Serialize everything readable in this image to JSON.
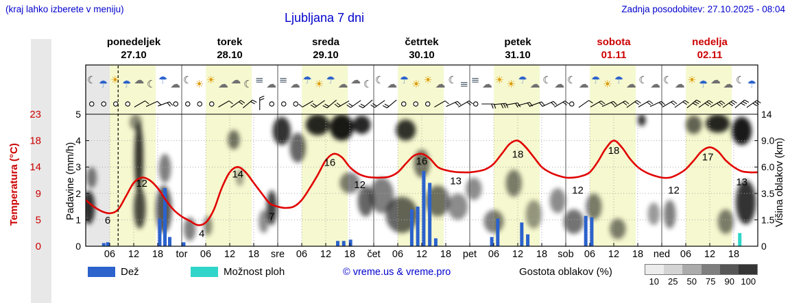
{
  "header": {
    "note": "(kraj lahko izberete v meniju)",
    "title": "Ljubljana 7 dni",
    "updated": "Zadnja posodobitev: 27.10.2025 - 08:04"
  },
  "colors": {
    "accent_blue": "#0000cc",
    "red": "#cc0000",
    "band_yellow": "#f6f8cf",
    "band_past": "#e7e7e7",
    "grid": "#aaaaaa",
    "frame": "#000000",
    "icon_colors": {
      "☀": "#dd9900",
      "☁": "#707070",
      "☾": "#404040",
      "☂": "#2b62cc",
      "≡": "#506070"
    }
  },
  "legend": {
    "rain": "Dež",
    "showers": "Možnost ploh",
    "copyright": "© vreme.us & vreme.pro",
    "cloud": "Gostota oblakov (%)",
    "cloud_scale": {
      "labels": [
        "10",
        "25",
        "50",
        "75",
        "90",
        "100"
      ],
      "colors": [
        "#ececec",
        "#d4d4d4",
        "#ababab",
        "#7e7e7e",
        "#565656",
        "#353535"
      ]
    }
  },
  "chart_data": {
    "type": "line",
    "title": "Ljubljana 7 dni",
    "hours_total": 168,
    "now_hour": 8.1,
    "daylight_hours": [
      6,
      17.5
    ],
    "past_hours": [
      0,
      6
    ],
    "days": [
      {
        "name": "ponedeljek",
        "date": "27.10",
        "abbr": "",
        "weekend": false
      },
      {
        "name": "torek",
        "date": "28.10",
        "abbr": "tor",
        "weekend": false
      },
      {
        "name": "sreda",
        "date": "29.10",
        "abbr": "sre",
        "weekend": false
      },
      {
        "name": "četrtek",
        "date": "30.10",
        "abbr": "čet",
        "weekend": false
      },
      {
        "name": "petek",
        "date": "31.10",
        "abbr": "pet",
        "weekend": false
      },
      {
        "name": "sobota",
        "date": "01.11",
        "abbr": "sob",
        "weekend": true
      },
      {
        "name": "nedelja",
        "date": "02.11",
        "abbr": "ned",
        "weekend": true
      }
    ],
    "x_hour_labels": [
      "06",
      "12",
      "18"
    ],
    "axes": {
      "temp": {
        "label": "Temperatura (°C)",
        "ticks": [
          "23",
          "18",
          "14",
          "9",
          "5",
          "0"
        ],
        "map_value": [
          0,
          5,
          9,
          14,
          18,
          23
        ],
        "map_unit": [
          0,
          1,
          2,
          3,
          4,
          5
        ]
      },
      "precip": {
        "label": "Padavine (mm/h)",
        "ticks": [
          "5",
          "4",
          "3",
          "2",
          "1",
          "0"
        ]
      },
      "cloud": {
        "label": "Višina oblakov (km)",
        "ticks": [
          "14",
          "9.0",
          "6.0",
          "3.5",
          "1.5",
          "0"
        ],
        "map_value": [
          0,
          1.5,
          3.5,
          6,
          9,
          14
        ],
        "map_unit": [
          0,
          1,
          2,
          3,
          4,
          5
        ]
      }
    },
    "temperature": {
      "name": "Temperatura (°C)",
      "color": "#e10000",
      "points": [
        [
          0,
          8
        ],
        [
          2,
          7
        ],
        [
          4,
          6.3
        ],
        [
          6,
          6
        ],
        [
          8,
          6.5
        ],
        [
          10,
          8.5
        ],
        [
          12,
          11
        ],
        [
          14,
          12
        ],
        [
          16,
          11.5
        ],
        [
          18,
          10
        ],
        [
          20,
          8
        ],
        [
          22,
          6.5
        ],
        [
          24,
          5.5
        ],
        [
          26,
          4.8
        ],
        [
          28,
          4
        ],
        [
          30,
          4.5
        ],
        [
          32,
          6.5
        ],
        [
          34,
          10
        ],
        [
          36,
          13
        ],
        [
          38,
          14
        ],
        [
          40,
          13
        ],
        [
          42,
          11
        ],
        [
          44,
          9
        ],
        [
          46,
          7.5
        ],
        [
          48,
          7
        ],
        [
          50,
          6.8
        ],
        [
          52,
          7
        ],
        [
          54,
          8
        ],
        [
          56,
          10
        ],
        [
          58,
          12.5
        ],
        [
          60,
          15
        ],
        [
          62,
          16
        ],
        [
          64,
          15.5
        ],
        [
          66,
          14
        ],
        [
          68,
          12.8
        ],
        [
          70,
          12.2
        ],
        [
          72,
          12
        ],
        [
          74,
          12
        ],
        [
          76,
          12.2
        ],
        [
          78,
          13
        ],
        [
          80,
          14.5
        ],
        [
          82,
          15.7
        ],
        [
          84,
          16
        ],
        [
          86,
          15.3
        ],
        [
          88,
          14
        ],
        [
          90,
          13.4
        ],
        [
          92,
          13.1
        ],
        [
          94,
          13
        ],
        [
          96,
          13
        ],
        [
          98,
          13.2
        ],
        [
          100,
          13.6
        ],
        [
          102,
          14.5
        ],
        [
          104,
          16
        ],
        [
          106,
          17.5
        ],
        [
          108,
          18
        ],
        [
          110,
          17
        ],
        [
          112,
          15.5
        ],
        [
          114,
          14
        ],
        [
          116,
          13
        ],
        [
          118,
          12.4
        ],
        [
          120,
          12
        ],
        [
          122,
          12
        ],
        [
          124,
          12.3
        ],
        [
          126,
          13
        ],
        [
          128,
          14.8
        ],
        [
          130,
          16.8
        ],
        [
          132,
          18
        ],
        [
          134,
          17
        ],
        [
          136,
          15.3
        ],
        [
          138,
          14
        ],
        [
          140,
          13
        ],
        [
          142,
          12.4
        ],
        [
          144,
          12
        ],
        [
          146,
          12
        ],
        [
          148,
          12.6
        ],
        [
          150,
          13.6
        ],
        [
          152,
          15
        ],
        [
          154,
          16.4
        ],
        [
          156,
          17
        ],
        [
          158,
          16.4
        ],
        [
          160,
          15
        ],
        [
          162,
          14
        ],
        [
          164,
          13.2
        ],
        [
          166,
          13
        ],
        [
          168,
          13
        ]
      ]
    },
    "temp_labels": [
      {
        "text": "6",
        "hour": 5.5,
        "unit": 0.85
      },
      {
        "text": "12",
        "hour": 14,
        "unit": 2.25
      },
      {
        "text": "4",
        "hour": 29,
        "unit": 0.35
      },
      {
        "text": "14",
        "hour": 38,
        "unit": 2.6
      },
      {
        "text": "7",
        "hour": 46.5,
        "unit": 1.0
      },
      {
        "text": "16",
        "hour": 61,
        "unit": 3.05
      },
      {
        "text": "12",
        "hour": 68.5,
        "unit": 2.2
      },
      {
        "text": "16",
        "hour": 84,
        "unit": 3.1
      },
      {
        "text": "13",
        "hour": 92.5,
        "unit": 2.35
      },
      {
        "text": "18",
        "hour": 108,
        "unit": 3.35
      },
      {
        "text": "12",
        "hour": 123,
        "unit": 2.0
      },
      {
        "text": "18",
        "hour": 132,
        "unit": 3.5
      },
      {
        "text": "12",
        "hour": 147,
        "unit": 2.0
      },
      {
        "text": "17",
        "hour": 155.5,
        "unit": 3.25
      },
      {
        "text": "13",
        "hour": 164,
        "unit": 2.3
      }
    ],
    "rain": {
      "name": "Dež (mm/h)",
      "color": "#2b62cc",
      "bars": [
        [
          4.5,
          0.12
        ],
        [
          5.5,
          0.15
        ],
        [
          18.5,
          1.05
        ],
        [
          19.8,
          2.2
        ],
        [
          21,
          0.35
        ],
        [
          24.5,
          0.15
        ],
        [
          63,
          0.2
        ],
        [
          64.5,
          0.2
        ],
        [
          66.2,
          0.25
        ],
        [
          81.5,
          1.4
        ],
        [
          83,
          1.5
        ],
        [
          84.5,
          2.85
        ],
        [
          86,
          2.4
        ],
        [
          87.5,
          0.3
        ],
        [
          101.5,
          0.35
        ],
        [
          103,
          1.05
        ],
        [
          109,
          0.9
        ],
        [
          110.5,
          0.45
        ],
        [
          125,
          1.15
        ],
        [
          126.5,
          1.1
        ]
      ]
    },
    "showers": {
      "name": "Možnost ploh (mm/h)",
      "color": "#2fd5c8",
      "bars": [
        [
          163.5,
          0.5
        ]
      ]
    },
    "clouds": {
      "name": "Gostota oblakov",
      "blob_format": [
        "hour_center",
        "km_center",
        "width_hours",
        "height_km",
        "density"
      ],
      "blobs": [
        [
          0.8,
          2.5,
          3,
          2.5,
          0.8
        ],
        [
          1.5,
          5,
          2.5,
          2,
          0.5
        ],
        [
          13.3,
          8,
          2.2,
          9,
          0.8
        ],
        [
          13.5,
          2.5,
          3,
          3,
          0.7
        ],
        [
          12.5,
          12.5,
          3,
          3,
          0.45
        ],
        [
          19.5,
          2.5,
          4,
          3.5,
          0.65
        ],
        [
          19.8,
          6,
          3,
          3,
          0.5
        ],
        [
          26,
          1,
          3,
          1.4,
          0.5
        ],
        [
          30.5,
          1.2,
          2.2,
          1.2,
          0.45
        ],
        [
          37,
          9.5,
          3,
          3,
          0.55
        ],
        [
          38.5,
          5,
          2,
          1.6,
          0.35
        ],
        [
          44.5,
          1.5,
          2.5,
          1.5,
          0.45
        ],
        [
          46.5,
          2.5,
          2.6,
          2.6,
          0.75
        ],
        [
          49,
          11,
          4.5,
          5,
          0.8
        ],
        [
          53,
          8.5,
          4,
          4,
          0.6
        ],
        [
          58,
          12,
          6,
          4,
          0.85
        ],
        [
          64,
          11.5,
          6,
          5,
          0.9
        ],
        [
          69,
          12,
          4.5,
          3.5,
          0.85
        ],
        [
          66,
          4.5,
          5,
          2,
          0.5
        ],
        [
          70,
          3,
          4,
          2.5,
          0.6
        ],
        [
          74,
          3.5,
          6,
          3,
          0.5
        ],
        [
          80,
          11,
          5,
          4,
          0.8
        ],
        [
          84,
          6.5,
          4,
          3,
          0.55
        ],
        [
          79,
          2,
          8,
          2.5,
          0.6
        ],
        [
          88,
          3,
          6,
          2.5,
          0.55
        ],
        [
          93,
          2.5,
          5,
          2,
          0.45
        ],
        [
          97,
          4,
          4,
          2,
          0.45
        ],
        [
          102,
          1.5,
          5,
          1.5,
          0.5
        ],
        [
          107,
          4.5,
          4,
          2.5,
          0.5
        ],
        [
          112,
          2,
          4,
          2,
          0.4
        ],
        [
          118,
          3,
          4,
          2,
          0.45
        ],
        [
          122,
          1.5,
          5,
          1.6,
          0.55
        ],
        [
          127,
          2.5,
          4,
          2,
          0.5
        ],
        [
          133,
          1,
          4,
          1.2,
          0.5
        ],
        [
          139,
          13,
          2,
          2.5,
          0.8
        ],
        [
          142,
          2,
          3,
          1.6,
          0.4
        ],
        [
          146,
          2,
          3,
          2,
          0.5
        ],
        [
          152,
          12,
          4,
          3.5,
          0.6
        ],
        [
          158,
          12.5,
          6,
          4,
          0.85
        ],
        [
          164,
          11,
          5,
          5,
          0.9
        ],
        [
          165,
          3,
          5,
          3.5,
          0.8
        ],
        [
          160,
          1.5,
          4,
          1.6,
          0.5
        ]
      ]
    },
    "icons": [
      [
        "☾",
        "☂",
        "☀",
        "☂",
        "☁",
        "☾",
        "☂",
        "☁"
      ],
      [
        "☾",
        "☀",
        "☀",
        "☁",
        "☁",
        "☾",
        "≡",
        "☁"
      ],
      [
        "≡",
        "☁",
        "☂",
        "☀",
        "☂",
        "☁",
        "☁",
        "☾"
      ],
      [
        "☾",
        "☁",
        "☂",
        "☀",
        "☀",
        "☁",
        "☾",
        "≡"
      ],
      [
        "≡",
        "☁",
        "☀",
        "☀",
        "☂",
        "☁",
        "☾",
        "☁"
      ],
      [
        "☾",
        "☁",
        "☂",
        "☀",
        "☂",
        "☁",
        "☾",
        "☁"
      ],
      [
        "☾",
        "☁",
        "☀",
        "☂",
        "☁",
        "☁",
        "☾",
        "☂"
      ]
    ],
    "wind": [
      [
        "o",
        "o",
        "o",
        "o",
        "60:1",
        "65:1",
        "70:2",
        "o"
      ],
      [
        "o",
        "o",
        "o",
        "60:1",
        "55:2",
        "50:2",
        "0:2",
        "o"
      ],
      [
        "o",
        "o",
        "240:1",
        "235:2",
        "230:2",
        "240:2",
        "235:2",
        "230:2"
      ],
      [
        "235:2",
        "230:2",
        "o",
        "o",
        "o",
        "60:1",
        "65:2",
        "60:2"
      ],
      [
        "o",
        "90:2",
        "85:3",
        "80:2",
        "75:2",
        "70:2",
        "65:2",
        "60:2"
      ],
      [
        "o",
        "55:1",
        "60:2",
        "65:2",
        "60:2",
        "55:2",
        "60:2",
        "65:2"
      ],
      [
        "60:2",
        "55:2",
        "50:3",
        "55:3",
        "60:3",
        "55:3",
        "50:3",
        "55:3"
      ]
    ]
  }
}
